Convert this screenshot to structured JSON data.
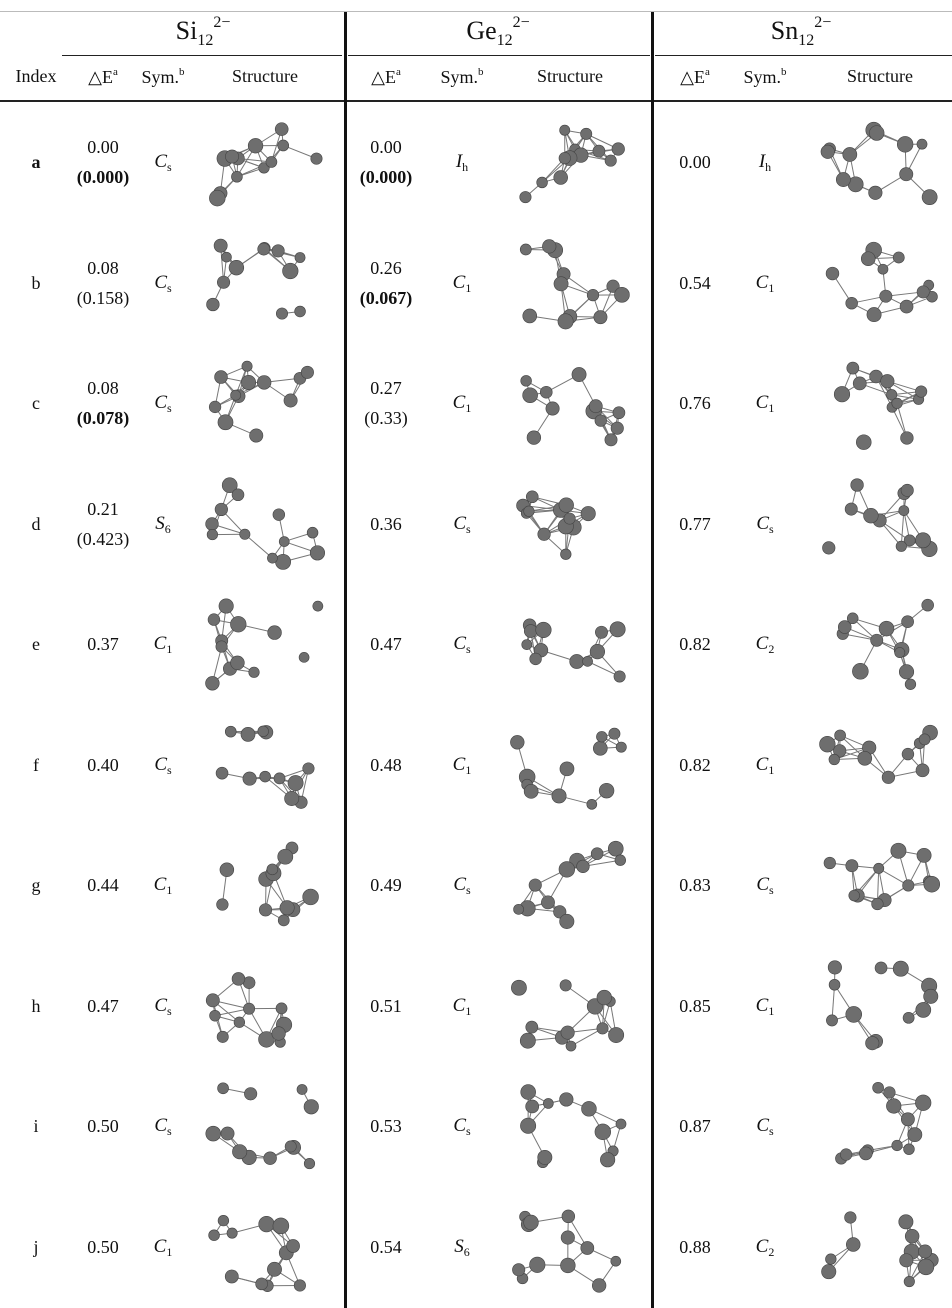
{
  "groups": [
    {
      "element": "Si",
      "sub": "12",
      "sup": "2−"
    },
    {
      "element": "Ge",
      "sub": "12",
      "sup": "2−"
    },
    {
      "element": "Sn",
      "sub": "12",
      "sup": "2−"
    }
  ],
  "columns": {
    "index": "Index",
    "energy": {
      "text": "△E",
      "sup": "a"
    },
    "sym": {
      "text": "Sym.",
      "sup": "b"
    },
    "structure": "Structure"
  },
  "rows": [
    {
      "index": "a",
      "index_bold": true,
      "cells": [
        {
          "energy": "0.00",
          "alt": "(0.000)",
          "alt_bold": true,
          "sym": {
            "letter": "C",
            "sub": "s"
          }
        },
        {
          "energy": "0.00",
          "alt": "(0.000)",
          "alt_bold": true,
          "sym": {
            "letter": "I",
            "sub": "h"
          }
        },
        {
          "energy": "0.00",
          "sym": {
            "letter": "I",
            "sub": "h"
          }
        }
      ]
    },
    {
      "index": "b",
      "cells": [
        {
          "energy": "0.08",
          "alt": "(0.158)",
          "sym": {
            "letter": "C",
            "sub": "s"
          }
        },
        {
          "energy": "0.26",
          "alt": "(0.067)",
          "alt_bold": true,
          "sym": {
            "letter": "C",
            "sub": "1"
          }
        },
        {
          "energy": "0.54",
          "sym": {
            "letter": "C",
            "sub": "1"
          }
        }
      ]
    },
    {
      "index": "c",
      "cells": [
        {
          "energy": "0.08",
          "alt": "(0.078)",
          "alt_bold": true,
          "sym": {
            "letter": "C",
            "sub": "s"
          }
        },
        {
          "energy": "0.27",
          "alt": "(0.33)",
          "sym": {
            "letter": "C",
            "sub": "1"
          }
        },
        {
          "energy": "0.76",
          "sym": {
            "letter": "C",
            "sub": "1"
          }
        }
      ]
    },
    {
      "index": "d",
      "cells": [
        {
          "energy": "0.21",
          "alt": "(0.423)",
          "sym": {
            "letter": "S",
            "sub": "6"
          }
        },
        {
          "energy": "0.36",
          "sym": {
            "letter": "C",
            "sub": "s"
          }
        },
        {
          "energy": "0.77",
          "sym": {
            "letter": "C",
            "sub": "s"
          }
        }
      ]
    },
    {
      "index": "e",
      "cells": [
        {
          "energy": "0.37",
          "sym": {
            "letter": "C",
            "sub": "1"
          }
        },
        {
          "energy": "0.47",
          "sym": {
            "letter": "C",
            "sub": "s"
          }
        },
        {
          "energy": "0.82",
          "sym": {
            "letter": "C",
            "sub": "2"
          }
        }
      ]
    },
    {
      "index": "f",
      "cells": [
        {
          "energy": "0.40",
          "sym": {
            "letter": "C",
            "sub": "s"
          }
        },
        {
          "energy": "0.48",
          "sym": {
            "letter": "C",
            "sub": "1"
          }
        },
        {
          "energy": "0.82",
          "sym": {
            "letter": "C",
            "sub": "1"
          }
        }
      ]
    },
    {
      "index": "g",
      "cells": [
        {
          "energy": "0.44",
          "sym": {
            "letter": "C",
            "sub": "1"
          }
        },
        {
          "energy": "0.49",
          "sym": {
            "letter": "C",
            "sub": "s"
          }
        },
        {
          "energy": "0.83",
          "sym": {
            "letter": "C",
            "sub": "s"
          }
        }
      ]
    },
    {
      "index": "h",
      "cells": [
        {
          "energy": "0.47",
          "sym": {
            "letter": "C",
            "sub": "s"
          }
        },
        {
          "energy": "0.51",
          "sym": {
            "letter": "C",
            "sub": "1"
          }
        },
        {
          "energy": "0.85",
          "sym": {
            "letter": "C",
            "sub": "1"
          }
        }
      ]
    },
    {
      "index": "i",
      "cells": [
        {
          "energy": "0.50",
          "sym": {
            "letter": "C",
            "sub": "s"
          }
        },
        {
          "energy": "0.53",
          "sym": {
            "letter": "C",
            "sub": "s"
          }
        },
        {
          "energy": "0.87",
          "sym": {
            "letter": "C",
            "sub": "s"
          }
        }
      ]
    },
    {
      "index": "j",
      "cells": [
        {
          "energy": "0.50",
          "sym": {
            "letter": "C",
            "sub": "1"
          }
        },
        {
          "energy": "0.54",
          "sym": {
            "letter": "S",
            "sub": "6"
          }
        },
        {
          "energy": "0.88",
          "sym": {
            "letter": "C",
            "sub": "2"
          }
        }
      ]
    }
  ]
}
